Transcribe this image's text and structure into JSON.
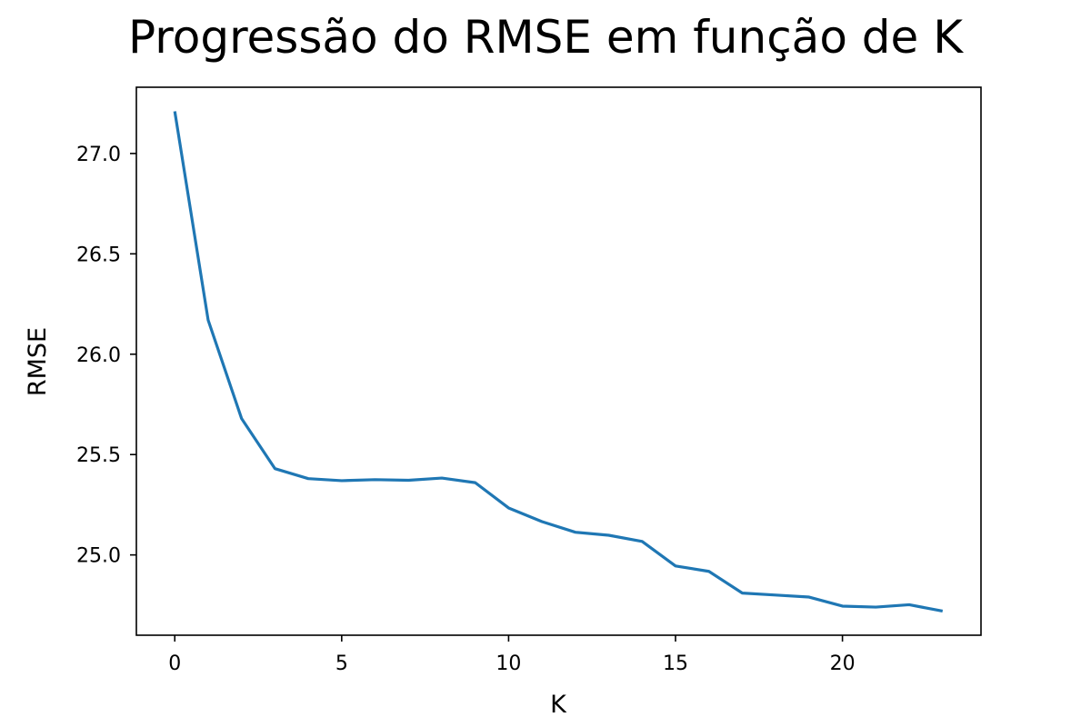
{
  "chart_data": {
    "type": "line",
    "title": "Progressão do RMSE em função de K",
    "xlabel": "K",
    "ylabel": "RMSE",
    "xlim": [
      -1.15,
      24.15
    ],
    "ylim": [
      24.6,
      27.33
    ],
    "xticks": [
      0,
      5,
      10,
      15,
      20
    ],
    "xtick_labels": [
      "0",
      "5",
      "10",
      "15",
      "20"
    ],
    "yticks": [
      25.0,
      25.5,
      26.0,
      26.5,
      27.0
    ],
    "ytick_labels": [
      "25.0",
      "25.5",
      "26.0",
      "26.5",
      "27.0"
    ],
    "grid": false,
    "line_color": "#1f77b4",
    "series": [
      {
        "x": [
          0,
          1,
          2,
          3,
          4,
          5,
          6,
          7,
          8,
          9,
          10,
          11,
          12,
          13,
          14,
          15,
          16,
          17,
          18,
          19,
          20,
          21,
          22,
          23
        ],
        "values": [
          27.21,
          26.17,
          25.68,
          25.43,
          25.38,
          25.37,
          25.375,
          25.372,
          25.383,
          25.36,
          25.234,
          25.166,
          25.113,
          25.098,
          25.067,
          24.945,
          24.918,
          24.81,
          24.8,
          24.79,
          24.745,
          24.74,
          24.752,
          24.72
        ]
      }
    ]
  }
}
